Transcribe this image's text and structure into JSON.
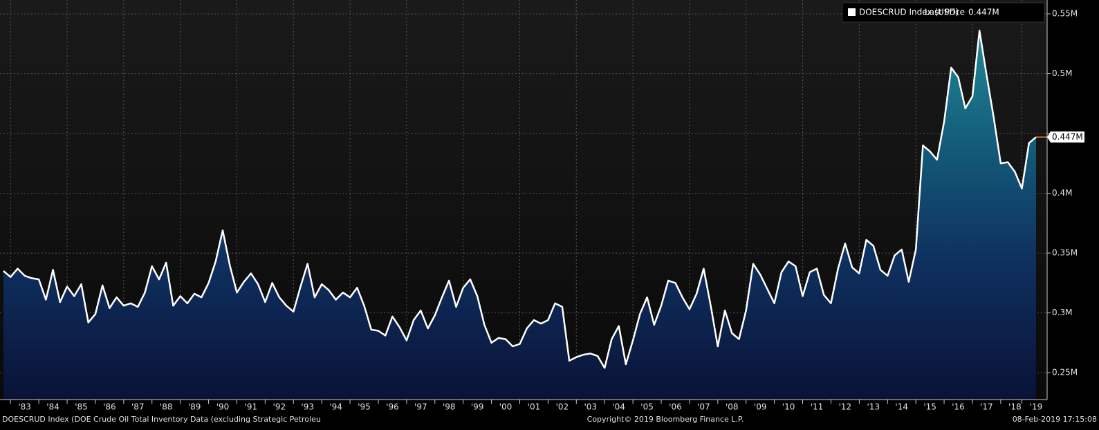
{
  "chart_data": {
    "type": "area",
    "legend_title": "DOESCRUD Index (USD)",
    "legend_label": "Last Price",
    "last_price_label": "0.447M",
    "footer_left": "DOESCRUD Index (DOE Crude Oil Total Inventory Data (excluding Strategic Petroleu",
    "footer_center": "Copyright© 2019 Bloomberg Finance L.P.",
    "footer_right": "08-Feb-2019 17:15:08",
    "categories": [
      null,
      null,
      null,
      "'83",
      null,
      null,
      null,
      "'84",
      null,
      null,
      null,
      "'85",
      null,
      null,
      null,
      "'86",
      null,
      null,
      null,
      "'87",
      null,
      null,
      null,
      "'88",
      null,
      null,
      null,
      "'89",
      null,
      null,
      null,
      "'90",
      null,
      null,
      null,
      "'91",
      null,
      null,
      null,
      "'92",
      null,
      null,
      null,
      "'93",
      null,
      null,
      null,
      "'94",
      null,
      null,
      null,
      "'95",
      null,
      null,
      null,
      "'96",
      null,
      null,
      null,
      "'97",
      null,
      null,
      null,
      "'98",
      null,
      null,
      null,
      "'99",
      null,
      null,
      null,
      "'00",
      null,
      null,
      null,
      "'01",
      null,
      null,
      null,
      "'02",
      null,
      null,
      null,
      "'03",
      null,
      null,
      null,
      "'04",
      null,
      null,
      null,
      "'05",
      null,
      null,
      null,
      "'06",
      null,
      null,
      null,
      "'07",
      null,
      null,
      null,
      "'08",
      null,
      null,
      null,
      "'09",
      null,
      null,
      null,
      "'10",
      null,
      null,
      null,
      "'11",
      null,
      null,
      null,
      "'12",
      null,
      null,
      null,
      "'13",
      null,
      null,
      null,
      "'14",
      null,
      null,
      null,
      "'15",
      null,
      null,
      null,
      "'16",
      null,
      null,
      null,
      "'17",
      null,
      null,
      null,
      "'18",
      null,
      null,
      "'19"
    ],
    "series": [
      {
        "name": "DOESCRUD Index (USD)",
        "color": "#ffffff",
        "values": [
          0.335,
          0.33,
          0.337,
          0.331,
          0.329,
          0.328,
          0.311,
          0.336,
          0.309,
          0.322,
          0.314,
          0.324,
          0.292,
          0.299,
          0.323,
          0.304,
          0.313,
          0.306,
          0.308,
          0.305,
          0.317,
          0.339,
          0.328,
          0.342,
          0.306,
          0.314,
          0.308,
          0.316,
          0.313,
          0.325,
          0.343,
          0.369,
          0.34,
          0.317,
          0.326,
          0.333,
          0.324,
          0.309,
          0.325,
          0.313,
          0.306,
          0.301,
          0.322,
          0.341,
          0.313,
          0.324,
          0.319,
          0.311,
          0.317,
          0.313,
          0.321,
          0.306,
          0.286,
          0.285,
          0.281,
          0.297,
          0.288,
          0.277,
          0.294,
          0.302,
          0.287,
          0.298,
          0.313,
          0.327,
          0.305,
          0.321,
          0.328,
          0.314,
          0.29,
          0.275,
          0.279,
          0.278,
          0.272,
          0.274,
          0.287,
          0.294,
          0.291,
          0.294,
          0.308,
          0.305,
          0.26,
          0.263,
          0.265,
          0.266,
          0.264,
          0.254,
          0.278,
          0.289,
          0.257,
          0.277,
          0.299,
          0.313,
          0.29,
          0.306,
          0.327,
          0.325,
          0.313,
          0.303,
          0.316,
          0.337,
          0.306,
          0.272,
          0.302,
          0.283,
          0.278,
          0.302,
          0.341,
          0.332,
          0.32,
          0.308,
          0.334,
          0.343,
          0.339,
          0.314,
          0.334,
          0.337,
          0.315,
          0.308,
          0.337,
          0.358,
          0.338,
          0.333,
          0.361,
          0.356,
          0.336,
          0.331,
          0.348,
          0.353,
          0.326,
          0.353,
          0.44,
          0.435,
          0.428,
          0.46,
          0.505,
          0.497,
          0.471,
          0.481,
          0.536,
          0.499,
          0.464,
          0.425,
          0.426,
          0.418,
          0.404,
          0.442,
          0.447
        ]
      }
    ],
    "ylim": [
      0.2275,
      0.5616
    ],
    "yticks": [
      {
        "value": 0.25,
        "label": "0.25M"
      },
      {
        "value": 0.3,
        "label": "0.3M"
      },
      {
        "value": 0.35,
        "label": "0.35M"
      },
      {
        "value": 0.4,
        "label": "0.4M"
      },
      {
        "value": 0.45,
        "label": ""
      },
      {
        "value": 0.5,
        "label": "0.5M"
      },
      {
        "value": 0.55,
        "label": "0.55M"
      }
    ],
    "grid": true,
    "legend_position": "upper right"
  }
}
